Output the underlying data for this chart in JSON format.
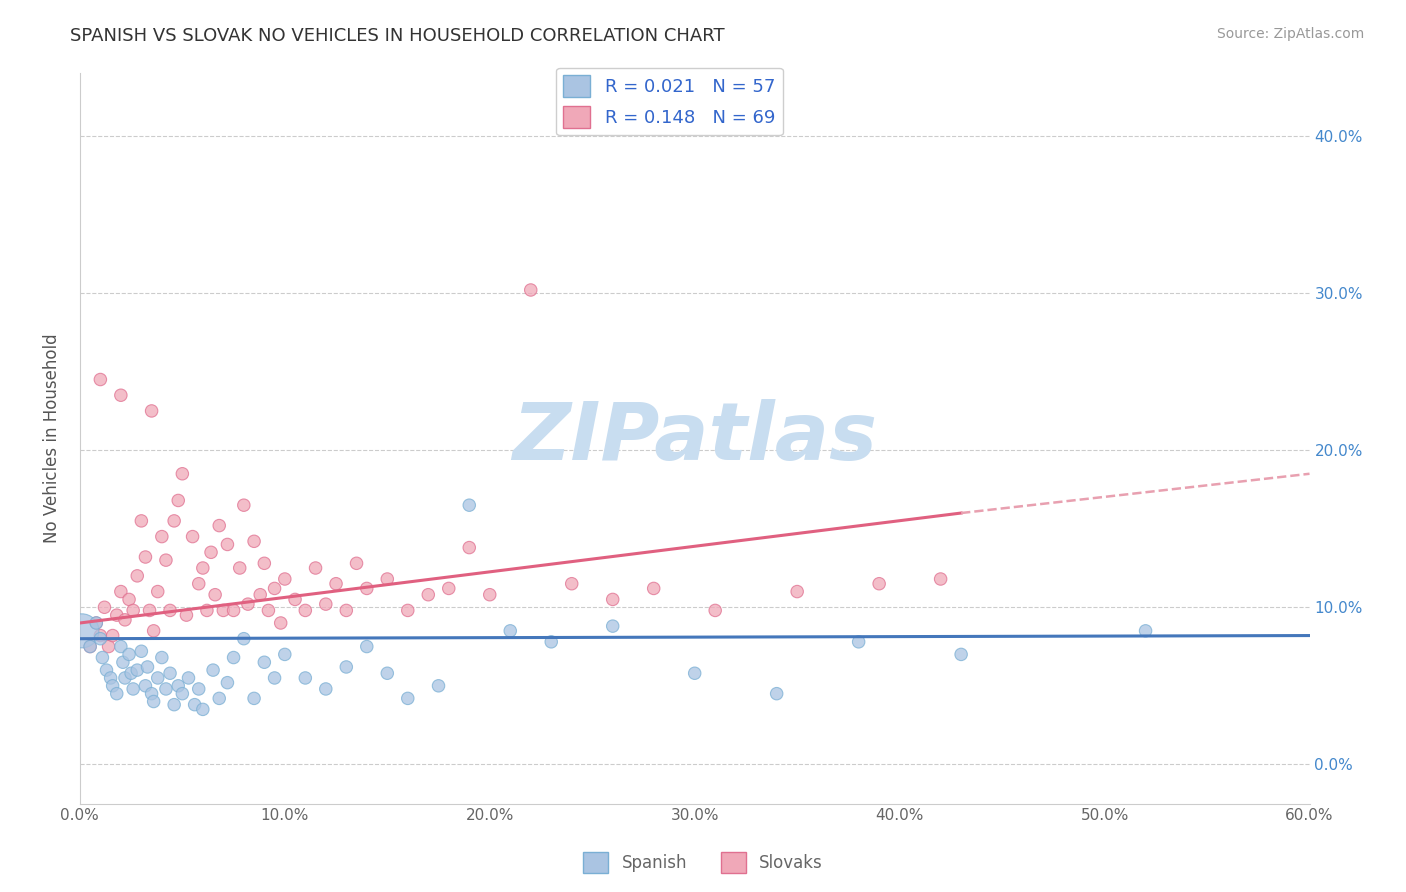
{
  "title": "SPANISH VS SLOVAK NO VEHICLES IN HOUSEHOLD CORRELATION CHART",
  "source_text": "Source: ZipAtlas.com",
  "ylabel": "No Vehicles in Household",
  "xlim": [
    0.0,
    0.6
  ],
  "ylim": [
    -0.025,
    0.44
  ],
  "xticks": [
    0.0,
    0.1,
    0.2,
    0.3,
    0.4,
    0.5,
    0.6
  ],
  "xtick_labels": [
    "0.0%",
    "10.0%",
    "20.0%",
    "30.0%",
    "40.0%",
    "50.0%",
    "60.0%"
  ],
  "yticks": [
    0.0,
    0.1,
    0.2,
    0.3,
    0.4
  ],
  "ytick_labels_left": [
    "",
    "",
    "",
    "",
    ""
  ],
  "ytick_labels_right": [
    "0.0%",
    "10.0%",
    "20.0%",
    "30.0%",
    "40.0%"
  ],
  "spanish_color": "#aac4e2",
  "slovak_color": "#f0a8b8",
  "spanish_edge": "#7aafd4",
  "slovak_edge": "#e07090",
  "trend_spanish_color": "#4477bb",
  "trend_slovak_color": "#e06080",
  "trend_slovak_dashed_color": "#e8a0b0",
  "R_spanish": 0.021,
  "N_spanish": 57,
  "R_slovak": 0.148,
  "N_slovak": 69,
  "watermark": "ZIPatlas",
  "watermark_color": "#c8ddf0",
  "legend_label_spanish": "Spanish",
  "legend_label_slovak": "Slovaks",
  "spanish_x": [
    0.001,
    0.005,
    0.008,
    0.01,
    0.011,
    0.013,
    0.015,
    0.016,
    0.018,
    0.02,
    0.021,
    0.022,
    0.024,
    0.025,
    0.026,
    0.028,
    0.03,
    0.032,
    0.033,
    0.035,
    0.036,
    0.038,
    0.04,
    0.042,
    0.044,
    0.046,
    0.048,
    0.05,
    0.053,
    0.056,
    0.058,
    0.06,
    0.065,
    0.068,
    0.072,
    0.075,
    0.08,
    0.085,
    0.09,
    0.095,
    0.1,
    0.11,
    0.12,
    0.13,
    0.14,
    0.15,
    0.16,
    0.175,
    0.19,
    0.21,
    0.23,
    0.26,
    0.3,
    0.34,
    0.38,
    0.43,
    0.52
  ],
  "spanish_y": [
    0.085,
    0.075,
    0.09,
    0.08,
    0.068,
    0.06,
    0.055,
    0.05,
    0.045,
    0.075,
    0.065,
    0.055,
    0.07,
    0.058,
    0.048,
    0.06,
    0.072,
    0.05,
    0.062,
    0.045,
    0.04,
    0.055,
    0.068,
    0.048,
    0.058,
    0.038,
    0.05,
    0.045,
    0.055,
    0.038,
    0.048,
    0.035,
    0.06,
    0.042,
    0.052,
    0.068,
    0.08,
    0.042,
    0.065,
    0.055,
    0.07,
    0.055,
    0.048,
    0.062,
    0.075,
    0.058,
    0.042,
    0.05,
    0.165,
    0.085,
    0.078,
    0.088,
    0.058,
    0.045,
    0.078,
    0.07,
    0.085
  ],
  "spanish_sizes": [
    600,
    80,
    80,
    80,
    80,
    80,
    80,
    80,
    80,
    80,
    80,
    80,
    80,
    80,
    80,
    80,
    80,
    80,
    80,
    80,
    80,
    80,
    80,
    80,
    80,
    80,
    80,
    80,
    80,
    80,
    80,
    80,
    80,
    80,
    80,
    80,
    80,
    80,
    80,
    80,
    80,
    80,
    80,
    80,
    80,
    80,
    80,
    80,
    80,
    80,
    80,
    80,
    80,
    80,
    80,
    80,
    80
  ],
  "slovak_x": [
    0.005,
    0.008,
    0.01,
    0.012,
    0.014,
    0.016,
    0.018,
    0.02,
    0.022,
    0.024,
    0.026,
    0.028,
    0.03,
    0.032,
    0.034,
    0.036,
    0.038,
    0.04,
    0.042,
    0.044,
    0.046,
    0.048,
    0.05,
    0.052,
    0.055,
    0.058,
    0.06,
    0.062,
    0.064,
    0.066,
    0.068,
    0.07,
    0.072,
    0.075,
    0.078,
    0.08,
    0.082,
    0.085,
    0.088,
    0.09,
    0.092,
    0.095,
    0.098,
    0.1,
    0.105,
    0.11,
    0.115,
    0.12,
    0.125,
    0.13,
    0.135,
    0.14,
    0.15,
    0.16,
    0.17,
    0.18,
    0.19,
    0.2,
    0.22,
    0.24,
    0.26,
    0.28,
    0.31,
    0.35,
    0.39,
    0.42,
    0.01,
    0.02,
    0.035
  ],
  "slovak_y": [
    0.075,
    0.09,
    0.082,
    0.1,
    0.075,
    0.082,
    0.095,
    0.11,
    0.092,
    0.105,
    0.098,
    0.12,
    0.155,
    0.132,
    0.098,
    0.085,
    0.11,
    0.145,
    0.13,
    0.098,
    0.155,
    0.168,
    0.185,
    0.095,
    0.145,
    0.115,
    0.125,
    0.098,
    0.135,
    0.108,
    0.152,
    0.098,
    0.14,
    0.098,
    0.125,
    0.165,
    0.102,
    0.142,
    0.108,
    0.128,
    0.098,
    0.112,
    0.09,
    0.118,
    0.105,
    0.098,
    0.125,
    0.102,
    0.115,
    0.098,
    0.128,
    0.112,
    0.118,
    0.098,
    0.108,
    0.112,
    0.138,
    0.108,
    0.302,
    0.115,
    0.105,
    0.112,
    0.098,
    0.11,
    0.115,
    0.118,
    0.245,
    0.235,
    0.225
  ],
  "slovak_sizes": [
    80,
    80,
    80,
    80,
    80,
    80,
    80,
    80,
    80,
    80,
    80,
    80,
    80,
    80,
    80,
    80,
    80,
    80,
    80,
    80,
    80,
    80,
    80,
    80,
    80,
    80,
    80,
    80,
    80,
    80,
    80,
    80,
    80,
    80,
    80,
    80,
    80,
    80,
    80,
    80,
    80,
    80,
    80,
    80,
    80,
    80,
    80,
    80,
    80,
    80,
    80,
    80,
    80,
    80,
    80,
    80,
    80,
    80,
    80,
    80,
    80,
    80,
    80,
    80,
    80,
    80,
    80,
    80,
    80
  ]
}
